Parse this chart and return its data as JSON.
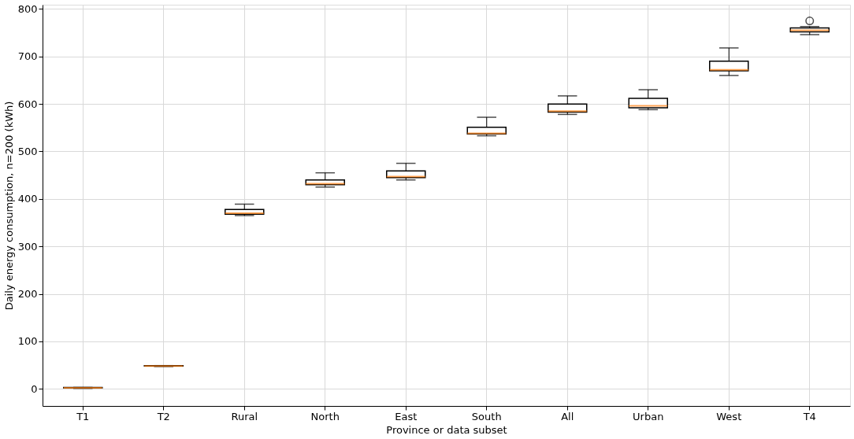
{
  "chart_data": {
    "type": "box",
    "xlabel": "Province or data subset",
    "ylabel": "Daily energy consumption, n=200 (kWh)",
    "categories": [
      "T1",
      "T2",
      "Rural",
      "North",
      "East",
      "South",
      "All",
      "Urban",
      "West",
      "T4"
    ],
    "series": [
      {
        "color": "#000000",
        "boxes": [
          {
            "low": 1,
            "q1": 2,
            "median": 2,
            "q3": 3,
            "high": 3
          },
          {
            "low": 47,
            "q1": 48,
            "median": 48,
            "q3": 49,
            "high": 49
          },
          {
            "low": 365,
            "q1": 368,
            "median": 370,
            "q3": 378,
            "high": 389
          },
          {
            "low": 425,
            "q1": 430,
            "median": 432,
            "q3": 440,
            "high": 455
          },
          {
            "low": 440,
            "q1": 445,
            "median": 447,
            "q3": 459,
            "high": 475
          },
          {
            "low": 533,
            "q1": 537,
            "median": 538,
            "q3": 551,
            "high": 572
          },
          {
            "low": 578,
            "q1": 583,
            "median": 585,
            "q3": 600,
            "high": 617
          },
          {
            "low": 588,
            "q1": 592,
            "median": 596,
            "q3": 612,
            "high": 630
          },
          {
            "low": 660,
            "q1": 670,
            "median": 672,
            "q3": 690,
            "high": 718
          },
          {
            "low": 746,
            "q1": 752,
            "median": 755,
            "q3": 760,
            "high": 763,
            "outliers": [
              775
            ]
          }
        ]
      }
    ],
    "ylim": [
      -36,
      809
    ],
    "yticks": [
      0,
      100,
      200,
      300,
      400,
      500,
      600,
      700,
      800
    ],
    "grid": true
  }
}
